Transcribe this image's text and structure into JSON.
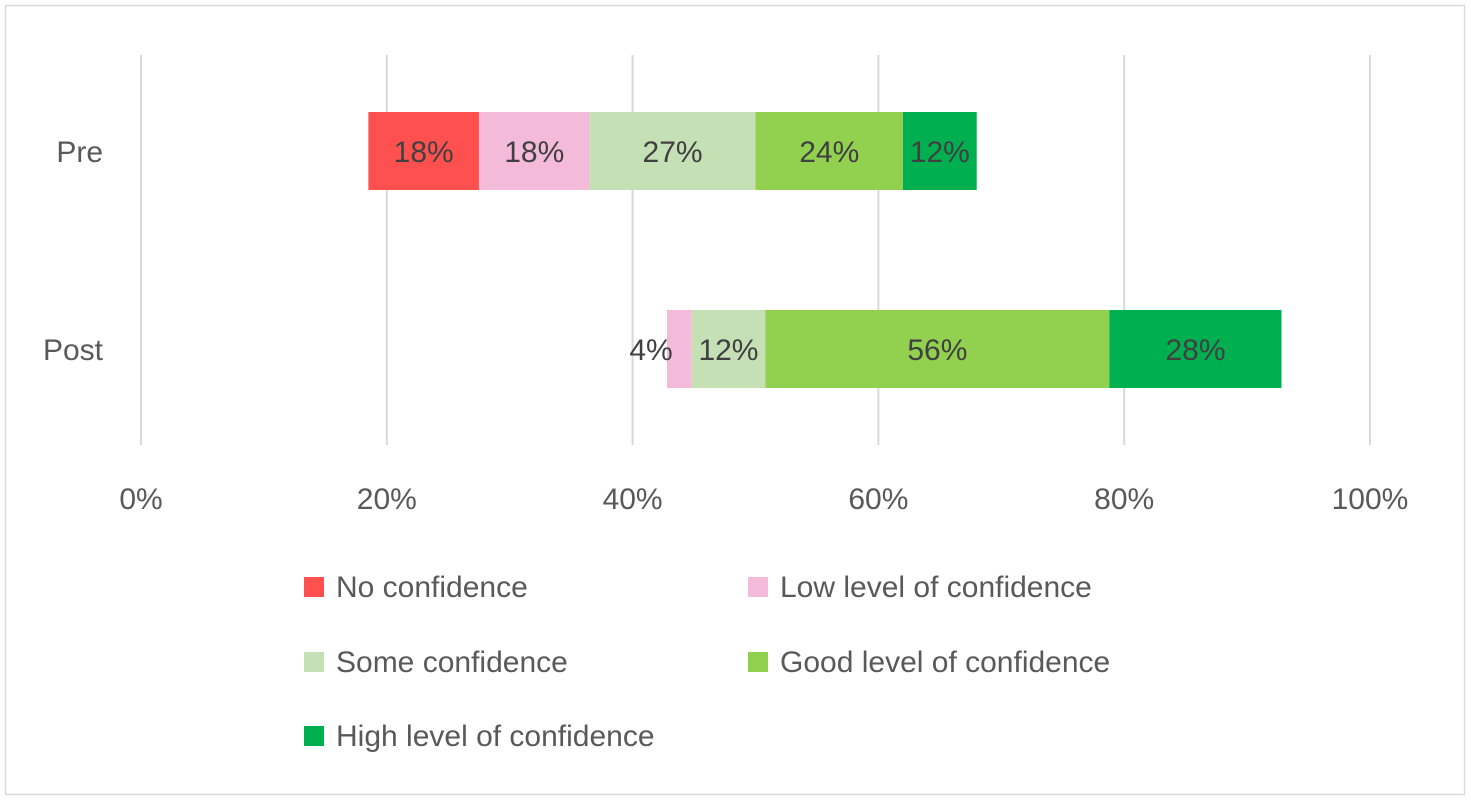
{
  "chart_data": {
    "type": "bar",
    "orientation": "horizontal",
    "stacked": true,
    "title": "",
    "xlabel": "",
    "ylabel": "",
    "xlim": [
      0,
      100
    ],
    "x_ticks": [
      "0%",
      "20%",
      "40%",
      "60%",
      "80%",
      "100%"
    ],
    "x_tick_values": [
      0,
      20,
      40,
      60,
      80,
      100
    ],
    "grid": "vertical",
    "legend_position": "bottom",
    "plot_scale": 0.5,
    "categories": [
      "Pre",
      "Post"
    ],
    "invisible_offset": [
      18.5,
      42.8
    ],
    "series": [
      {
        "name": "No confidence",
        "color": "#FF5050",
        "values": [
          18,
          0
        ],
        "labels": [
          "18%",
          ""
        ]
      },
      {
        "name": "Low level of confidence",
        "color": "#F4BADA",
        "values": [
          18,
          4
        ],
        "labels": [
          "18%",
          "4%"
        ]
      },
      {
        "name": "Some confidence",
        "color": "#C5E0B4",
        "values": [
          27,
          12
        ],
        "labels": [
          "27%",
          "12%"
        ]
      },
      {
        "name": "Good level of confidence",
        "color": "#92D050",
        "values": [
          24,
          56
        ],
        "labels": [
          "24%",
          "56%"
        ]
      },
      {
        "name": "High level of confidence",
        "color": "#00B050",
        "values": [
          12,
          28
        ],
        "labels": [
          "12%",
          "28%"
        ]
      }
    ]
  }
}
